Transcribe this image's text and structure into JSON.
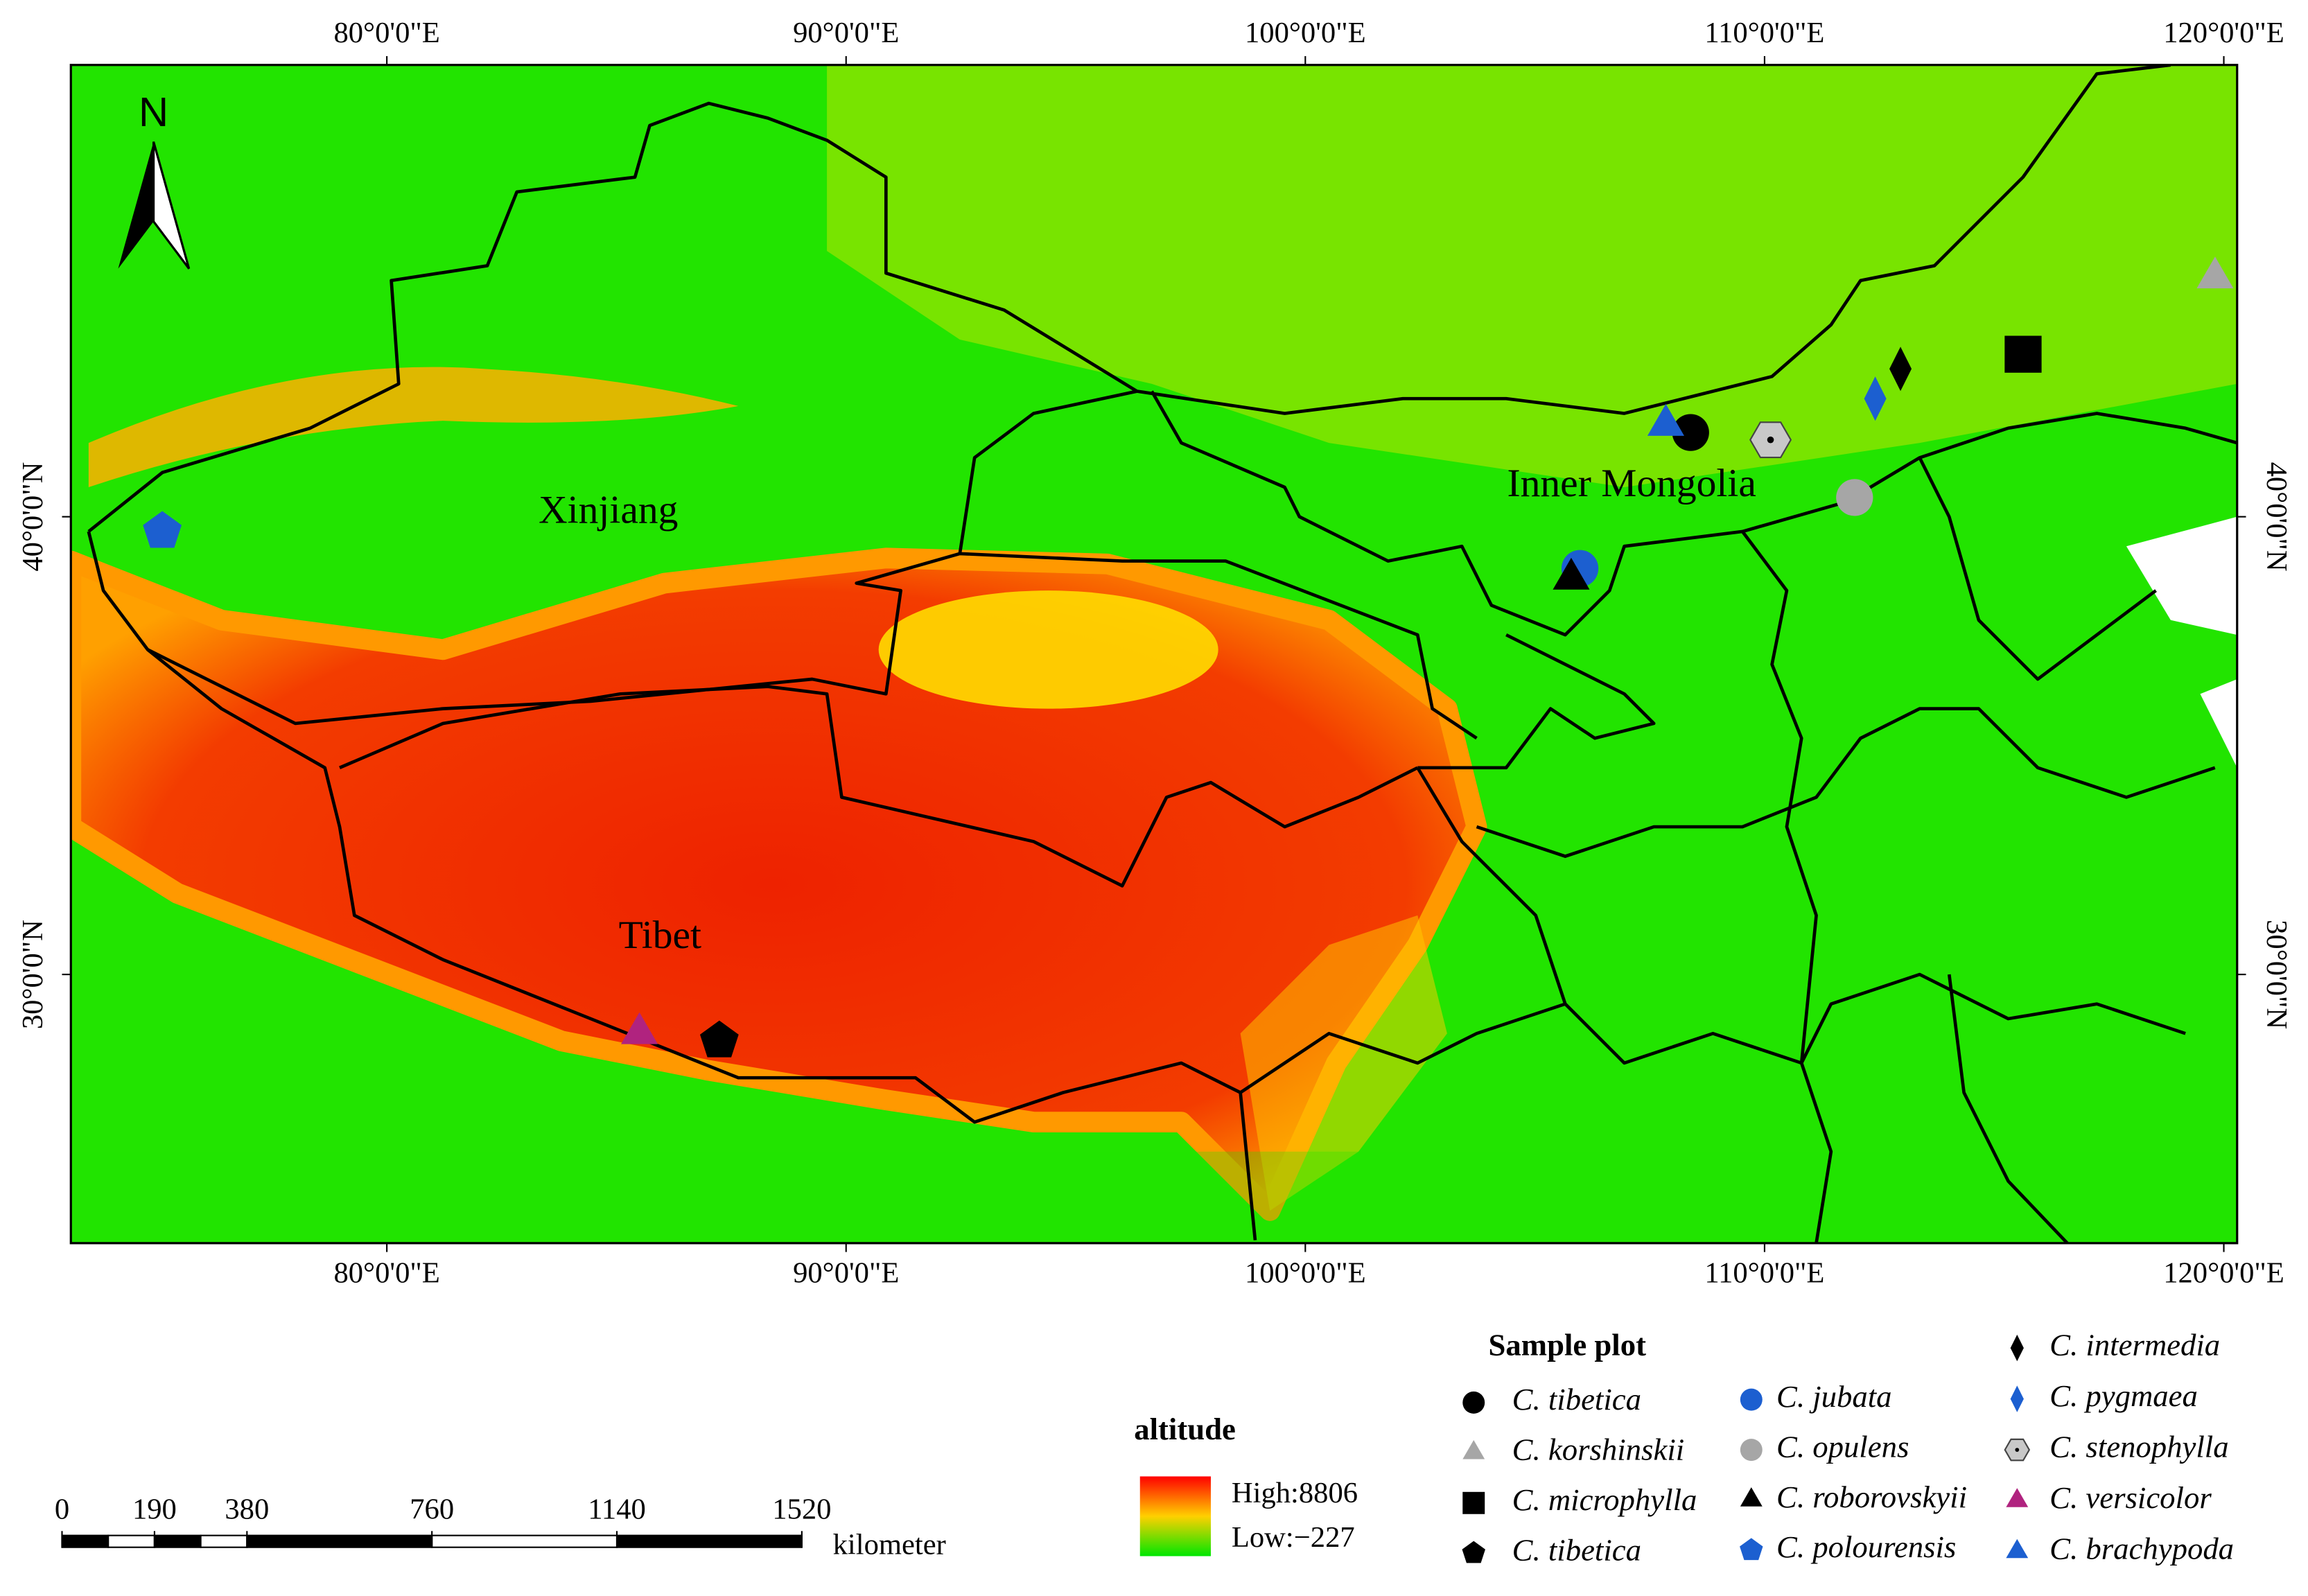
{
  "map": {
    "xlim": [
      73.12,
      120.29
    ],
    "ylim": [
      24.13,
      49.87
    ],
    "xticks": [
      {
        "value": 80,
        "label": "80°0'0\"E"
      },
      {
        "value": 90,
        "label": "90°0'0\"E"
      },
      {
        "value": 100,
        "label": "100°0'0\"E"
      },
      {
        "value": 110,
        "label": "110°0'0\"E"
      },
      {
        "value": 120,
        "label": "120°0'0\"E"
      }
    ],
    "yticks": [
      {
        "value": 30,
        "label": "30°0'0\"N"
      },
      {
        "value": 40,
        "label": "40°0'0\"N"
      }
    ],
    "regions": [
      "Xinjiang",
      "Inner Mongolia",
      "Tibet"
    ],
    "north": "N"
  },
  "legend": {
    "title": "Sample plot",
    "species": [
      {
        "name": "C. tibetica",
        "shape": "circle",
        "color": "#000000",
        "lon": 108.39,
        "lat": 41.84
      },
      {
        "name": "C. korshinskii",
        "shape": "triangle",
        "color": "#a6a6a6",
        "lon": 119.81,
        "lat": 45.22
      },
      {
        "name": "C. microphylla",
        "shape": "square",
        "color": "#000000",
        "lon": 115.63,
        "lat": 43.55
      },
      {
        "name": "C. tibetica",
        "shape": "pentagon",
        "color": "#000000",
        "lon": 87.24,
        "lat": 28.55
      },
      {
        "name": "C. jubata",
        "shape": "circle",
        "color": "#1c5fd0",
        "lon": 105.98,
        "lat": 38.87
      },
      {
        "name": "C. opulens",
        "shape": "circle",
        "color": "#a6a6a6",
        "lon": 111.96,
        "lat": 40.42
      },
      {
        "name": "C. roborovskyii",
        "shape": "triangle",
        "color": "#000000",
        "lon": 105.79,
        "lat": 38.64
      },
      {
        "name": "C. polourensis",
        "shape": "pentagon",
        "color": "#1c5fd0",
        "lon": 75.11,
        "lat": 39.68
      },
      {
        "name": "C. intermedia",
        "shape": "diamond",
        "color": "#000000",
        "lon": 112.96,
        "lat": 43.23
      },
      {
        "name": "C. pygmaea",
        "shape": "diamond",
        "color": "#1c5fd0",
        "lon": 112.41,
        "lat": 42.58
      },
      {
        "name": "C. stenophylla",
        "shape": "hexagon",
        "color": "#c8c8c8",
        "lon": 110.13,
        "lat": 41.68
      },
      {
        "name": "C. versicolor",
        "shape": "triangle",
        "color": "#b0237f",
        "lon": 85.5,
        "lat": 28.71
      },
      {
        "name": "C. brachypoda",
        "shape": "triangle",
        "color": "#1c5fd0",
        "lon": 107.85,
        "lat": 42.0
      }
    ]
  },
  "altitude": {
    "title": "altitude",
    "high": "High:8806",
    "low": "Low:−227"
  },
  "scale_bar": {
    "ticks": [
      0,
      190,
      380,
      760,
      1140,
      1520
    ],
    "unit": "kilometer"
  }
}
